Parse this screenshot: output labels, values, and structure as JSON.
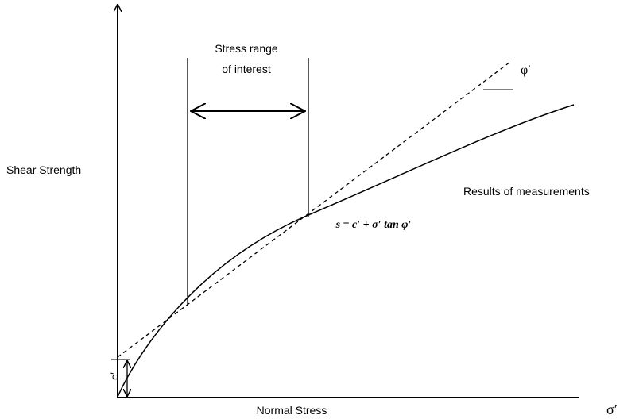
{
  "labels": {
    "stress_range_line1": "Stress range",
    "stress_range_line2": "of interest",
    "phi": "φ′",
    "y_axis": "Shear Strength",
    "results": "Results of measurements",
    "equation": "s = c′ + σ′ tan φ′",
    "cohesion": "c′",
    "x_axis": "Normal Stress",
    "sigma": "σ′"
  }
}
